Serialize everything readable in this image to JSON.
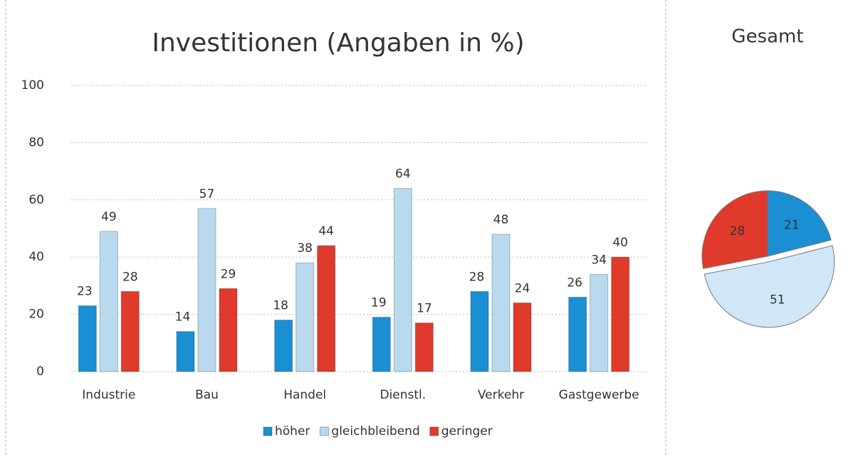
{
  "chart_data": [
    {
      "type": "bar",
      "title": "Investitionen (Angaben in %)",
      "categories": [
        "Industrie",
        "Bau",
        "Handel",
        "Dienstl.",
        "Verkehr",
        "Gastgewerbe"
      ],
      "series": [
        {
          "name": "höher",
          "color": "#1b8fd4",
          "values": [
            23,
            14,
            18,
            19,
            28,
            26
          ]
        },
        {
          "name": "gleichbleibend",
          "color": "#b9d9ee",
          "values": [
            49,
            57,
            38,
            64,
            48,
            34
          ]
        },
        {
          "name": "geringer",
          "color": "#df3a2c",
          "values": [
            28,
            29,
            44,
            17,
            24,
            40
          ]
        }
      ],
      "ylim": [
        0,
        100
      ],
      "yticks": [
        0,
        20,
        40,
        60,
        80,
        100
      ],
      "grid": true,
      "legend": "bottom"
    },
    {
      "type": "pie",
      "title": "Gesamt",
      "values": [
        21,
        51,
        28
      ],
      "colors": [
        "#1b8fd4",
        "#cfe7f7",
        "#df3a2c"
      ]
    }
  ]
}
